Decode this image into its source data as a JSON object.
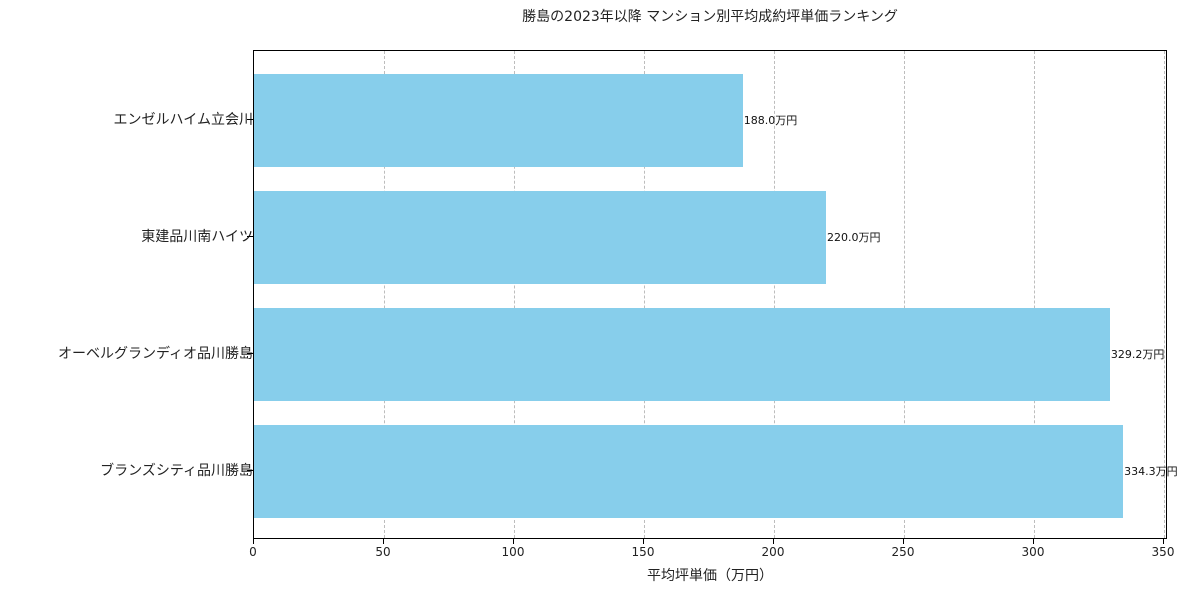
{
  "chart_data": {
    "type": "bar",
    "orientation": "horizontal",
    "title": "勝島の2023年以降 マンション別平均成約坪単価ランキング",
    "xlabel": "平均坪単価（万円）",
    "ylabel": "",
    "xlim": [
      0,
      350
    ],
    "xticks": [
      "0",
      "50",
      "100",
      "150",
      "200",
      "250",
      "300",
      "350"
    ],
    "grid": "x-dashed",
    "bar_color": "#87ceeb",
    "categories": [
      "エンゼルハイム立会川",
      "東建品川南ハイツ",
      "オーベルグランディオ品川勝島",
      "ブランズシティ品川勝島"
    ],
    "values": [
      188.0,
      220.0,
      329.2,
      334.3
    ],
    "data_labels": [
      "188.0万円",
      "220.0万円",
      "329.2万円",
      "334.3万円"
    ]
  }
}
